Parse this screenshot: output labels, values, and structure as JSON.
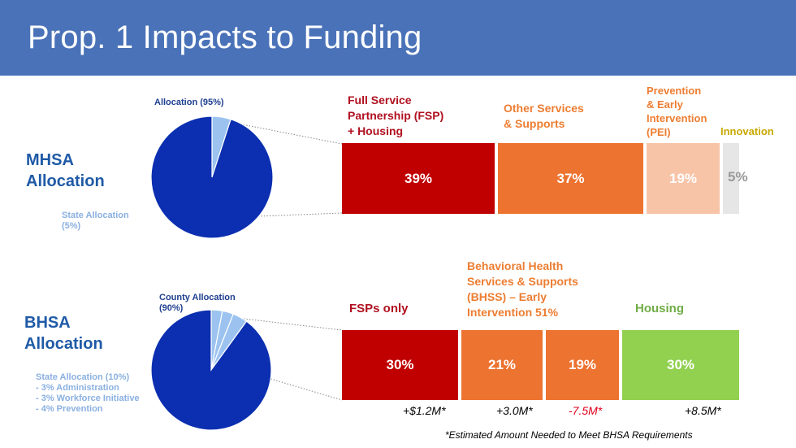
{
  "slide": {
    "title": "Prop. 1 Impacts to Funding"
  },
  "mhsa": {
    "label_line1": "MHSA",
    "label_line2": "Allocation",
    "pie": {
      "main_caption": "Allocation (95%)",
      "minor_caption_line1": "State Allocation",
      "minor_caption_line2": "(5%)",
      "slices": [
        {
          "share": 0.95,
          "color": "#0b2fb0"
        },
        {
          "share": 0.05,
          "color": "#9cc3f0"
        }
      ]
    },
    "categories": [
      {
        "label_lines": [
          "Full Service",
          "Partnership (FSP)",
          "+ Housing"
        ],
        "value": "39%",
        "share": 39,
        "color": "#c00000",
        "label_color": "#b01020",
        "text_color": "#ffffff"
      },
      {
        "label_lines": [
          "Other Services",
          "& Supports"
        ],
        "value": "37%",
        "share": 37,
        "color": "#ed7330",
        "label_color": "#ed7d31",
        "text_color": "#ffffff"
      },
      {
        "label_lines": [
          "Prevention",
          "& Early",
          "Intervention",
          "(PEI)"
        ],
        "value": "19%",
        "share": 19,
        "color": "#f8c4a8",
        "label_color": "#ed7d31",
        "text_color": "#ffffff"
      },
      {
        "label_lines": [
          "Innovation"
        ],
        "value": "5%",
        "share": 5,
        "color": "#e6e6e6",
        "label_color": "#c9a800",
        "text_color": "#9a9a9a"
      }
    ]
  },
  "bhsa": {
    "label_line1": "BHSA",
    "label_line2": "Allocation",
    "pie": {
      "main_caption_line1": "County Allocation",
      "main_caption_line2": "(90%)",
      "minor_caption_lines": [
        "State Allocation (10%)",
        "- 3% Administration",
        "- 3% Workforce Initiative",
        "- 4% Prevention"
      ],
      "slices": [
        {
          "share": 0.9,
          "color": "#0b2fb0"
        },
        {
          "share": 0.03,
          "color": "#9cc3f0"
        },
        {
          "share": 0.03,
          "color": "#9cc3f0"
        },
        {
          "share": 0.04,
          "color": "#9cc3f0"
        }
      ]
    },
    "category_labels": {
      "fsp": "FSPs only",
      "bhss_lines": [
        "Behavioral Health",
        "Services & Supports",
        "(BHSS) – Early",
        "Intervention 51%"
      ],
      "housing": "Housing"
    },
    "blocks": [
      {
        "value": "30%",
        "share": 30,
        "color": "#c00000",
        "text_color": "#ffffff",
        "delta": "+$1.2M*",
        "negative": false
      },
      {
        "value": "21%",
        "share": 21,
        "color": "#ed7330",
        "text_color": "#ffffff",
        "delta": "+3.0M*",
        "negative": false
      },
      {
        "value": "19%",
        "share": 19,
        "color": "#ed7330",
        "text_color": "#ffffff",
        "delta": "-7.5M*",
        "negative": true
      },
      {
        "value": "30%",
        "share": 30,
        "color": "#92d050",
        "text_color": "#ffffff",
        "delta": "+8.5M*",
        "negative": false
      }
    ],
    "label_colors": {
      "fsp": "#b01020",
      "bhss": "#ed7d31",
      "housing": "#70ad47"
    }
  },
  "footnote": "*Estimated Amount Needed to Meet BHSA Requirements"
}
